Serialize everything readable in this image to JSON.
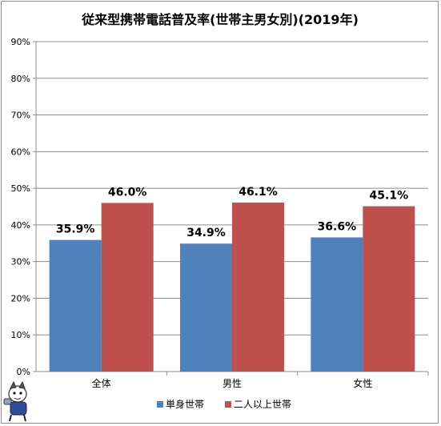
{
  "chart_data": {
    "type": "bar",
    "title": "従来型携帯電話普及率(世帯主男女別)(2019年)",
    "categories": [
      "全体",
      "男性",
      "女性"
    ],
    "series": [
      {
        "name": "単身世帯",
        "values": [
          35.9,
          34.9,
          36.6
        ],
        "labels": [
          "35.9%",
          "34.9%",
          "36.6%"
        ],
        "color": "#4f81bd"
      },
      {
        "name": "二人以上世帯",
        "values": [
          46.0,
          46.1,
          45.1
        ],
        "labels": [
          "46.0%",
          "46.1%",
          "45.1%"
        ],
        "color": "#c0504d"
      }
    ],
    "ylim": [
      0,
      90
    ],
    "yticks": [
      "0%",
      "10%",
      "20%",
      "30%",
      "40%",
      "50%",
      "60%",
      "70%",
      "80%",
      "90%"
    ],
    "grid": true,
    "legend_position": "bottom"
  },
  "mascot_icon": "mascot-character-icon"
}
